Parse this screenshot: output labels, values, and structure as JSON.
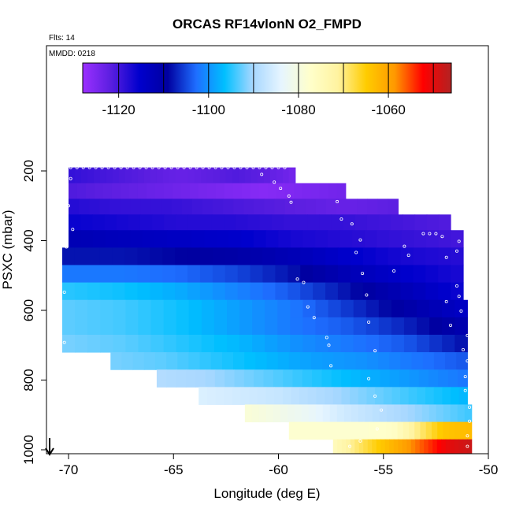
{
  "title": "ORCAS RF14vlonN O2_FMPD",
  "flts_label": "Flts: 14",
  "mmdd_label": "MMDD: 0218",
  "chart_data": {
    "type": "heatmap",
    "title": "ORCAS RF14vlonN O2_FMPD",
    "xlabel": "Longitude (deg E)",
    "ylabel": "PSXC (mbar)",
    "xlim": [
      -71,
      -50
    ],
    "ylim": [
      1000,
      0
    ],
    "x_ticks": [
      -70,
      -65,
      -60,
      -55,
      -50
    ],
    "y_ticks": [
      200,
      400,
      600,
      800,
      1000
    ],
    "colorbar": {
      "min": -1128,
      "max": -1046,
      "ticks": [
        -1120,
        -1100,
        -1080,
        -1060
      ],
      "levels": [
        -1120,
        -1110,
        -1100,
        -1090,
        -1080,
        -1070,
        -1060,
        -1050
      ],
      "colors": [
        "#9b30ff",
        "#5a1ee0",
        "#0000cd",
        "#0000a0",
        "#1e6eff",
        "#00bfff",
        "#a7d7ff",
        "#e6f5ff",
        "#ffffcc",
        "#fff3a0",
        "#ffcc00",
        "#ff9900",
        "#ff0000",
        "#b22222"
      ]
    },
    "pressure_bands": [
      {
        "p_top": 190,
        "p_bot": 235,
        "lon_min": -70.0,
        "lon_max": -59.2,
        "values": [
          -1119,
          -1120,
          -1121,
          -1122,
          -1123,
          -1122,
          -1121,
          -1122,
          -1124
        ]
      },
      {
        "p_top": 235,
        "p_bot": 280,
        "lon_min": -70.0,
        "lon_max": -56.8,
        "values": [
          -1121,
          -1122,
          -1123,
          -1124,
          -1125,
          -1126,
          -1125,
          -1124
        ]
      },
      {
        "p_top": 280,
        "p_bot": 325,
        "lon_min": -70.0,
        "lon_max": -54.3,
        "values": [
          -1118,
          -1119,
          -1119,
          -1120,
          -1121,
          -1122,
          -1123,
          -1122
        ]
      },
      {
        "p_top": 325,
        "p_bot": 370,
        "lon_min": -70.0,
        "lon_max": -51.8,
        "values": [
          -1116,
          -1117,
          -1118,
          -1118,
          -1119,
          -1119,
          -1120,
          -1121
        ]
      },
      {
        "p_top": 370,
        "p_bot": 420,
        "lon_min": -70.0,
        "lon_max": -51.2,
        "values": [
          -1112,
          -1113,
          -1114,
          -1115,
          -1117,
          -1118,
          -1119,
          -1120
        ]
      },
      {
        "p_top": 420,
        "p_bot": 470,
        "lon_min": -70.3,
        "lon_max": -51.2,
        "values": [
          -1108,
          -1108,
          -1109,
          -1110,
          -1112,
          -1115,
          -1117,
          -1118
        ]
      },
      {
        "p_top": 470,
        "p_bot": 520,
        "lon_min": -70.3,
        "lon_max": -51.2,
        "values": [
          -1102,
          -1102,
          -1103,
          -1105,
          -1108,
          -1112,
          -1115,
          -1117
        ]
      },
      {
        "p_top": 520,
        "p_bot": 570,
        "lon_min": -70.3,
        "lon_max": -51.2,
        "values": [
          -1095,
          -1096,
          -1098,
          -1101,
          -1104,
          -1108,
          -1112,
          -1116
        ]
      },
      {
        "p_top": 570,
        "p_bot": 620,
        "lon_min": -70.3,
        "lon_max": -51.0,
        "values": [
          -1093,
          -1094,
          -1096,
          -1099,
          -1102,
          -1106,
          -1110,
          -1114
        ]
      },
      {
        "p_top": 620,
        "p_bot": 670,
        "lon_min": -70.3,
        "lon_max": -51.0,
        "values": [
          -1093,
          -1094,
          -1096,
          -1099,
          -1102,
          -1104,
          -1107,
          -1111
        ]
      },
      {
        "p_top": 670,
        "p_bot": 720,
        "lon_min": -70.3,
        "lon_max": -51.0,
        "values": [
          -1092,
          -1093,
          -1095,
          -1097,
          -1100,
          -1102,
          -1104,
          -1108
        ]
      },
      {
        "p_top": 720,
        "p_bot": 770,
        "lon_min": -68.0,
        "lon_max": -51.0,
        "values": [
          -1092,
          -1093,
          -1095,
          -1097,
          -1099,
          -1100,
          -1102,
          -1104
        ]
      },
      {
        "p_top": 770,
        "p_bot": 820,
        "lon_min": -65.8,
        "lon_max": -51.0,
        "values": [
          -1089,
          -1090,
          -1092,
          -1094,
          -1096,
          -1098,
          -1100,
          -1102
        ]
      },
      {
        "p_top": 820,
        "p_bot": 870,
        "lon_min": -63.8,
        "lon_max": -51.0,
        "values": [
          -1085,
          -1086,
          -1087,
          -1089,
          -1091,
          -1093,
          -1095,
          -1097
        ]
      },
      {
        "p_top": 870,
        "p_bot": 920,
        "lon_min": -61.6,
        "lon_max": -50.8,
        "values": [
          -1079,
          -1081,
          -1083,
          -1086,
          -1088,
          -1090,
          -1092,
          -1094
        ]
      },
      {
        "p_top": 920,
        "p_bot": 970,
        "lon_min": -59.5,
        "lon_max": -50.8,
        "values": [
          -1078,
          -1078,
          -1078,
          -1078,
          -1077,
          -1070,
          -1064,
          -1063
        ]
      },
      {
        "p_top": 970,
        "p_bot": 1010,
        "lon_min": -57.4,
        "lon_max": -50.8,
        "values": [
          -1075,
          -1070,
          -1066,
          -1062,
          -1058,
          -1054,
          -1050,
          -1048
        ]
      }
    ],
    "flight_points": [
      {
        "lon": -69.9,
        "p": 190
      },
      {
        "lon": -69.6,
        "p": 190
      },
      {
        "lon": -69.3,
        "p": 190
      },
      {
        "lon": -69.0,
        "p": 190
      },
      {
        "lon": -68.7,
        "p": 190
      },
      {
        "lon": -68.4,
        "p": 190
      },
      {
        "lon": -68.1,
        "p": 190
      },
      {
        "lon": -67.8,
        "p": 190
      },
      {
        "lon": -67.5,
        "p": 190
      },
      {
        "lon": -67.2,
        "p": 190
      },
      {
        "lon": -66.9,
        "p": 190
      },
      {
        "lon": -66.6,
        "p": 190
      },
      {
        "lon": -66.3,
        "p": 190
      },
      {
        "lon": -66.0,
        "p": 190
      },
      {
        "lon": -65.7,
        "p": 190
      },
      {
        "lon": -65.4,
        "p": 190
      },
      {
        "lon": -65.1,
        "p": 190
      },
      {
        "lon": -64.8,
        "p": 190
      },
      {
        "lon": -64.5,
        "p": 190
      },
      {
        "lon": -64.2,
        "p": 190
      },
      {
        "lon": -63.9,
        "p": 190
      },
      {
        "lon": -63.6,
        "p": 190
      },
      {
        "lon": -63.3,
        "p": 190
      },
      {
        "lon": -63.0,
        "p": 190
      },
      {
        "lon": -62.7,
        "p": 190
      },
      {
        "lon": -62.4,
        "p": 190
      },
      {
        "lon": -62.1,
        "p": 190
      },
      {
        "lon": -61.8,
        "p": 190
      },
      {
        "lon": -61.5,
        "p": 190
      },
      {
        "lon": -61.2,
        "p": 190
      },
      {
        "lon": -60.9,
        "p": 190
      },
      {
        "lon": -60.6,
        "p": 190
      },
      {
        "lon": -60.3,
        "p": 190
      },
      {
        "lon": -60.0,
        "p": 190
      },
      {
        "lon": -59.7,
        "p": 190
      },
      {
        "lon": -60.8,
        "p": 210
      },
      {
        "lon": -60.2,
        "p": 232
      },
      {
        "lon": -59.9,
        "p": 250
      },
      {
        "lon": -59.5,
        "p": 272
      },
      {
        "lon": -59.4,
        "p": 290
      },
      {
        "lon": -69.9,
        "p": 222
      },
      {
        "lon": -70.0,
        "p": 300
      },
      {
        "lon": -69.8,
        "p": 368
      },
      {
        "lon": -70.1,
        "p": 418
      },
      {
        "lon": -70.2,
        "p": 548
      },
      {
        "lon": -70.2,
        "p": 692
      },
      {
        "lon": -57.2,
        "p": 288
      },
      {
        "lon": -57.0,
        "p": 338
      },
      {
        "lon": -56.5,
        "p": 352
      },
      {
        "lon": -56.1,
        "p": 398
      },
      {
        "lon": -56.3,
        "p": 434
      },
      {
        "lon": -56.0,
        "p": 494
      },
      {
        "lon": -55.8,
        "p": 556
      },
      {
        "lon": -55.7,
        "p": 634
      },
      {
        "lon": -55.4,
        "p": 716
      },
      {
        "lon": -55.7,
        "p": 796
      },
      {
        "lon": -55.4,
        "p": 846
      },
      {
        "lon": -55.1,
        "p": 886
      },
      {
        "lon": -55.3,
        "p": 940
      },
      {
        "lon": -56.1,
        "p": 975
      },
      {
        "lon": -56.6,
        "p": 990
      },
      {
        "lon": -53.1,
        "p": 380
      },
      {
        "lon": -52.8,
        "p": 380
      },
      {
        "lon": -52.5,
        "p": 380
      },
      {
        "lon": -52.2,
        "p": 388
      },
      {
        "lon": -51.4,
        "p": 402
      },
      {
        "lon": -51.5,
        "p": 430
      },
      {
        "lon": -52.0,
        "p": 448
      },
      {
        "lon": -54.0,
        "p": 416
      },
      {
        "lon": -53.8,
        "p": 442
      },
      {
        "lon": -54.5,
        "p": 487
      },
      {
        "lon": -51.5,
        "p": 530
      },
      {
        "lon": -51.4,
        "p": 560
      },
      {
        "lon": -52.0,
        "p": 575
      },
      {
        "lon": -51.3,
        "p": 602
      },
      {
        "lon": -51.8,
        "p": 643
      },
      {
        "lon": -51.0,
        "p": 672
      },
      {
        "lon": -51.2,
        "p": 713
      },
      {
        "lon": -51.0,
        "p": 745
      },
      {
        "lon": -51.1,
        "p": 790
      },
      {
        "lon": -51.1,
        "p": 830
      },
      {
        "lon": -50.9,
        "p": 878
      },
      {
        "lon": -50.9,
        "p": 918
      },
      {
        "lon": -51.0,
        "p": 960
      },
      {
        "lon": -51.0,
        "p": 990
      },
      {
        "lon": -59.1,
        "p": 510
      },
      {
        "lon": -58.8,
        "p": 520
      },
      {
        "lon": -58.6,
        "p": 590
      },
      {
        "lon": -58.3,
        "p": 621
      },
      {
        "lon": -57.7,
        "p": 678
      },
      {
        "lon": -57.6,
        "p": 700
      },
      {
        "lon": -57.5,
        "p": 759
      }
    ]
  }
}
